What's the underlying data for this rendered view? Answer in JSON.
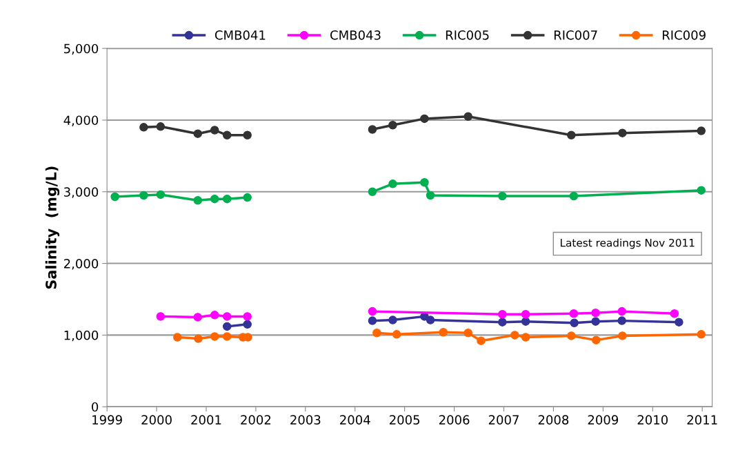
{
  "chart_data": {
    "type": "line",
    "ylabel": "Salinity  (mg/L)",
    "marker": "circle",
    "line_style": "solid",
    "grid": "y",
    "legend": "top",
    "xlim": [
      1999,
      2011.2
    ],
    "xticks": [
      1999,
      2000,
      2001,
      2002,
      2003,
      2004,
      2005,
      2006,
      2007,
      2008,
      2009,
      2010,
      2011
    ],
    "ylim": [
      0,
      5000
    ],
    "yticks": [
      0,
      {
        "value": 1000,
        "label": "1,000"
      },
      {
        "value": 2000,
        "label": "2,000"
      },
      {
        "value": 3000,
        "label": "3,000"
      },
      {
        "value": 4000,
        "label": "4,000"
      },
      {
        "value": 5000,
        "label": "5,000"
      }
    ],
    "annotations": [
      "Latest readings Nov 2011"
    ],
    "series": [
      {
        "name": "CMB041",
        "color": "#333399",
        "x": [
          2001.42,
          2001.83,
          null,
          2004.35,
          2004.76,
          2005.4,
          2005.52,
          2006.97,
          2007.44,
          2008.42,
          2008.85,
          2009.38,
          2010.53
        ],
        "values": [
          1120,
          1150,
          null,
          1200,
          1210,
          1260,
          1210,
          1180,
          1190,
          1170,
          1190,
          1200,
          1180
        ]
      },
      {
        "name": "CMB043",
        "color": "#ff00ff",
        "x": [
          2000.08,
          2000.83,
          2001.17,
          2001.42,
          2001.83,
          null,
          2004.35,
          2006.97,
          2007.44,
          2008.41,
          2008.85,
          2009.38,
          2010.44
        ],
        "values": [
          1260,
          1250,
          1280,
          1260,
          1260,
          null,
          1330,
          1290,
          1290,
          1300,
          1310,
          1330,
          1300
        ]
      },
      {
        "name": "RIC005",
        "color": "#00b050",
        "x": [
          1999.16,
          1999.74,
          2000.08,
          2000.83,
          2001.17,
          2001.42,
          2001.83,
          null,
          2004.35,
          2004.76,
          2005.4,
          2005.52,
          2006.97,
          2008.41,
          2010.98
        ],
        "values": [
          2930,
          2950,
          2960,
          2880,
          2900,
          2900,
          2920,
          null,
          3000,
          3110,
          3130,
          2950,
          2940,
          2940,
          3020
        ]
      },
      {
        "name": "RIC007",
        "color": "#333333",
        "x": [
          1999.74,
          2000.08,
          2000.83,
          2001.17,
          2001.42,
          2001.83,
          null,
          2004.35,
          2004.76,
          2005.4,
          2006.28,
          2008.36,
          2009.39,
          2010.98
        ],
        "values": [
          3900,
          3910,
          3810,
          3860,
          3790,
          3790,
          null,
          3870,
          3930,
          4020,
          4050,
          3790,
          3820,
          3850
        ]
      },
      {
        "name": "RIC009",
        "color": "#ff6600",
        "x": [
          2000.42,
          2000.84,
          2001.17,
          2001.42,
          2001.74,
          2001.84,
          null,
          2004.44,
          2004.84,
          2005.78,
          2006.28,
          2006.54,
          2007.22,
          2007.44,
          2008.36,
          2008.86,
          2009.39,
          2010.98
        ],
        "values": [
          970,
          950,
          980,
          980,
          970,
          970,
          null,
          1030,
          1010,
          1040,
          1030,
          920,
          1000,
          970,
          990,
          930,
          990,
          1010
        ]
      }
    ]
  }
}
